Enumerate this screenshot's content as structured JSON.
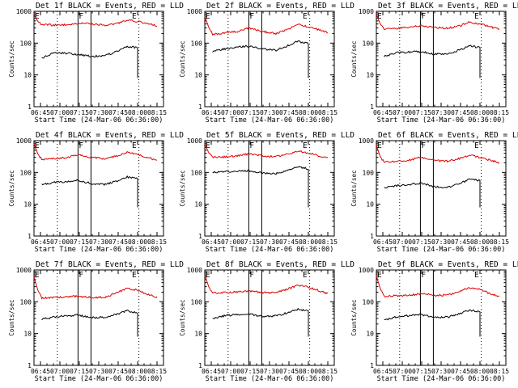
{
  "chart_data": [
    {
      "type": "line",
      "title": "Det 1f BLACK = Events, RED = LLD",
      "xlabel": "Start Time (24-Mar-06 06:36:00)",
      "ylabel": "Counts/sec",
      "yscale": "log",
      "ylim": [
        1,
        1000
      ],
      "yticks": [
        "1",
        "10",
        "100",
        "1000"
      ],
      "xticks": [
        "06:45",
        "07:00",
        "07:15",
        "07:30",
        "07:45",
        "08:00",
        "08:15"
      ],
      "xlim": [
        "06:40",
        "08:20"
      ],
      "vlines_solid": [
        "07:14",
        "07:24"
      ],
      "vlines_dotted": [
        "06:58",
        "08:01"
      ],
      "markers": [
        {
          "label": "E",
          "x": "06:40"
        },
        {
          "label": "F",
          "x": "07:14"
        },
        {
          "label": "E",
          "x": "07:55"
        }
      ],
      "x": [
        "06:40",
        "06:43",
        "06:46",
        "06:55",
        "07:05",
        "07:14",
        "07:25",
        "07:35",
        "07:45",
        "07:52",
        "08:00",
        "08:10",
        "08:15"
      ],
      "series": [
        {
          "color": "#e00000",
          "values": [
            800,
            480,
            380,
            370,
            380,
            420,
            400,
            370,
            420,
            530,
            480,
            390,
            350
          ]
        },
        {
          "color": "#000000",
          "values": [
            null,
            null,
            33,
            50,
            48,
            44,
            38,
            40,
            58,
            78,
            72,
            null,
            null
          ]
        }
      ]
    },
    {
      "type": "line",
      "title": "Det 2f BLACK = Events, RED = LLD",
      "xlabel": "Start Time (24-Mar-06 06:36:00)",
      "ylabel": "Counts/sec",
      "yscale": "log",
      "ylim": [
        1,
        1000
      ],
      "yticks": [
        "1",
        "10",
        "100",
        "1000"
      ],
      "xticks": [
        "06:45",
        "07:00",
        "07:15",
        "07:30",
        "07:45",
        "08:00",
        "08:15"
      ],
      "xlim": [
        "06:40",
        "08:20"
      ],
      "vlines_solid": [
        "07:14",
        "07:24"
      ],
      "vlines_dotted": [
        "06:58",
        "08:01"
      ],
      "markers": [
        {
          "label": "E",
          "x": "06:40"
        },
        {
          "label": "F",
          "x": "07:14"
        },
        {
          "label": "E",
          "x": "07:55"
        }
      ],
      "x": [
        "06:40",
        "06:43",
        "06:46",
        "06:55",
        "07:05",
        "07:14",
        "07:25",
        "07:35",
        "07:45",
        "07:52",
        "08:00",
        "08:10",
        "08:15"
      ],
      "series": [
        {
          "color": "#e00000",
          "values": [
            700,
            320,
            190,
            210,
            230,
            300,
            230,
            200,
            280,
            400,
            320,
            250,
            220
          ]
        },
        {
          "color": "#000000",
          "values": [
            null,
            null,
            55,
            65,
            75,
            80,
            65,
            60,
            85,
            115,
            95,
            null,
            null
          ]
        }
      ]
    },
    {
      "type": "line",
      "title": "Det 3f BLACK = Events, RED = LLD",
      "xlabel": "Start Time (24-Mar-06 06:36:00)",
      "ylabel": "Counts/sec",
      "yscale": "log",
      "ylim": [
        1,
        1000
      ],
      "yticks": [
        "1",
        "10",
        "100",
        "1000"
      ],
      "xticks": [
        "06:45",
        "07:00",
        "07:15",
        "07:30",
        "07:45",
        "08:00",
        "08:15"
      ],
      "xlim": [
        "06:40",
        "08:20"
      ],
      "vlines_solid": [
        "07:14",
        "07:24"
      ],
      "vlines_dotted": [
        "06:58",
        "08:01"
      ],
      "markers": [
        {
          "label": "E",
          "x": "06:40"
        },
        {
          "label": "F",
          "x": "07:14"
        },
        {
          "label": "E",
          "x": "07:55"
        }
      ],
      "x": [
        "06:40",
        "06:43",
        "06:46",
        "06:55",
        "07:05",
        "07:14",
        "07:25",
        "07:35",
        "07:45",
        "07:52",
        "08:00",
        "08:10",
        "08:15"
      ],
      "series": [
        {
          "color": "#e00000",
          "values": [
            800,
            400,
            280,
            290,
            310,
            360,
            310,
            290,
            360,
            460,
            400,
            310,
            280
          ]
        },
        {
          "color": "#000000",
          "values": [
            null,
            null,
            38,
            50,
            52,
            54,
            45,
            46,
            62,
            82,
            72,
            null,
            null
          ]
        }
      ]
    },
    {
      "type": "line",
      "title": "Det 4f BLACK = Events, RED = LLD",
      "xlabel": "Start Time (24-Mar-06 06:36:00)",
      "ylabel": "Counts/sec",
      "yscale": "log",
      "ylim": [
        1,
        1000
      ],
      "yticks": [
        "1",
        "10",
        "100",
        "1000"
      ],
      "xticks": [
        "06:45",
        "07:00",
        "07:15",
        "07:30",
        "07:45",
        "08:00",
        "08:15"
      ],
      "xlim": [
        "06:40",
        "08:20"
      ],
      "vlines_solid": [
        "07:14",
        "07:24"
      ],
      "vlines_dotted": [
        "06:58",
        "08:01"
      ],
      "markers": [
        {
          "label": "E",
          "x": "06:40"
        },
        {
          "label": "F",
          "x": "07:14"
        },
        {
          "label": "E",
          "x": "07:55"
        }
      ],
      "x": [
        "06:40",
        "06:43",
        "06:46",
        "06:55",
        "07:05",
        "07:14",
        "07:25",
        "07:35",
        "07:45",
        "07:52",
        "08:00",
        "08:10",
        "08:15"
      ],
      "series": [
        {
          "color": "#e00000",
          "values": [
            800,
            380,
            260,
            270,
            290,
            360,
            290,
            270,
            340,
            420,
            360,
            280,
            240
          ]
        },
        {
          "color": "#000000",
          "values": [
            null,
            null,
            42,
            48,
            52,
            56,
            44,
            42,
            55,
            72,
            65,
            null,
            null
          ]
        }
      ]
    },
    {
      "type": "line",
      "title": "Det 5f BLACK = Events, RED = LLD",
      "xlabel": "Start Time (24-Mar-06 06:36:00)",
      "ylabel": "Counts/sec",
      "yscale": "log",
      "ylim": [
        1,
        1000
      ],
      "yticks": [
        "1",
        "10",
        "100",
        "1000"
      ],
      "xticks": [
        "06:45",
        "07:00",
        "07:15",
        "07:30",
        "07:45",
        "08:00",
        "08:15"
      ],
      "xlim": [
        "06:40",
        "08:20"
      ],
      "vlines_solid": [
        "07:14",
        "07:24"
      ],
      "vlines_dotted": [
        "06:58",
        "08:01"
      ],
      "markers": [
        {
          "label": "E",
          "x": "06:40"
        },
        {
          "label": "F",
          "x": "07:14"
        },
        {
          "label": "E",
          "x": "07:55"
        }
      ],
      "x": [
        "06:40",
        "06:43",
        "06:46",
        "06:55",
        "07:05",
        "07:14",
        "07:25",
        "07:35",
        "07:45",
        "07:52",
        "08:00",
        "08:10",
        "08:15"
      ],
      "series": [
        {
          "color": "#e00000",
          "values": [
            800,
            420,
            300,
            310,
            330,
            380,
            330,
            310,
            380,
            470,
            410,
            320,
            290
          ]
        },
        {
          "color": "#000000",
          "values": [
            null,
            null,
            100,
            105,
            110,
            112,
            95,
            92,
            115,
            150,
            130,
            null,
            null
          ]
        }
      ]
    },
    {
      "type": "line",
      "title": "Det 6f BLACK = Events, RED = LLD",
      "xlabel": "Start Time (24-Mar-06 06:36:00)",
      "ylabel": "Counts/sec",
      "yscale": "log",
      "ylim": [
        1,
        1000
      ],
      "yticks": [
        "1",
        "10",
        "100",
        "1000"
      ],
      "xticks": [
        "06:45",
        "07:00",
        "07:15",
        "07:30",
        "07:45",
        "08:00",
        "08:15"
      ],
      "xlim": [
        "06:40",
        "08:20"
      ],
      "vlines_solid": [
        "07:14",
        "07:24"
      ],
      "vlines_dotted": [
        "06:58",
        "08:01"
      ],
      "markers": [
        {
          "label": "E",
          "x": "06:40"
        },
        {
          "label": "F",
          "x": "07:14"
        },
        {
          "label": "E",
          "x": "07:55"
        }
      ],
      "x": [
        "06:40",
        "06:43",
        "06:46",
        "06:55",
        "07:05",
        "07:14",
        "07:25",
        "07:35",
        "07:45",
        "07:52",
        "08:00",
        "08:10",
        "08:15"
      ],
      "series": [
        {
          "color": "#e00000",
          "values": [
            700,
            320,
            210,
            225,
            240,
            300,
            240,
            225,
            280,
            350,
            300,
            230,
            200
          ]
        },
        {
          "color": "#000000",
          "values": [
            null,
            null,
            32,
            38,
            42,
            46,
            36,
            34,
            45,
            62,
            55,
            null,
            null
          ]
        }
      ]
    },
    {
      "type": "line",
      "title": "Det 7f BLACK = Events, RED = LLD",
      "xlabel": "Start Time (24-Mar-06 06:36:00)",
      "ylabel": "Counts/sec",
      "yscale": "log",
      "ylim": [
        1,
        1000
      ],
      "yticks": [
        "1",
        "10",
        "100",
        "1000"
      ],
      "xticks": [
        "06:45",
        "07:00",
        "07:15",
        "07:30",
        "07:45",
        "08:00",
        "08:15"
      ],
      "xlim": [
        "06:40",
        "08:20"
      ],
      "vlines_solid": [
        "07:14",
        "07:24"
      ],
      "vlines_dotted": [
        "06:58",
        "08:01"
      ],
      "markers": [
        {
          "label": "E",
          "x": "06:40"
        },
        {
          "label": "F",
          "x": "07:14"
        },
        {
          "label": "E",
          "x": "07:55"
        }
      ],
      "x": [
        "06:40",
        "06:43",
        "06:46",
        "06:55",
        "07:05",
        "07:14",
        "07:25",
        "07:35",
        "07:45",
        "07:52",
        "08:00",
        "08:10",
        "08:15"
      ],
      "series": [
        {
          "color": "#e00000",
          "values": [
            600,
            230,
            130,
            135,
            140,
            150,
            135,
            140,
            200,
            270,
            230,
            160,
            140
          ]
        },
        {
          "color": "#000000",
          "values": [
            null,
            null,
            28,
            33,
            36,
            38,
            32,
            33,
            42,
            52,
            46,
            null,
            null
          ]
        }
      ]
    },
    {
      "type": "line",
      "title": "Det 8f BLACK = Events, RED = LLD",
      "xlabel": "Start Time (24-Mar-06 06:36:00)",
      "ylabel": "Counts/sec",
      "yscale": "log",
      "ylim": [
        1,
        1000
      ],
      "yticks": [
        "1",
        "10",
        "100",
        "1000"
      ],
      "xticks": [
        "06:45",
        "07:00",
        "07:15",
        "07:30",
        "07:45",
        "08:00",
        "08:15"
      ],
      "xlim": [
        "06:40",
        "08:20"
      ],
      "vlines_solid": [
        "07:14",
        "07:24"
      ],
      "vlines_dotted": [
        "06:58",
        "08:01"
      ],
      "markers": [
        {
          "label": "E",
          "x": "06:40"
        },
        {
          "label": "F",
          "x": "07:14"
        },
        {
          "label": "E",
          "x": "07:55"
        }
      ],
      "x": [
        "06:40",
        "06:43",
        "06:46",
        "06:55",
        "07:05",
        "07:14",
        "07:25",
        "07:35",
        "07:45",
        "07:52",
        "08:00",
        "08:10",
        "08:15"
      ],
      "series": [
        {
          "color": "#e00000",
          "values": [
            700,
            300,
            190,
            195,
            200,
            220,
            195,
            195,
            260,
            330,
            290,
            210,
            180
          ]
        },
        {
          "color": "#000000",
          "values": [
            null,
            null,
            30,
            36,
            40,
            42,
            34,
            36,
            46,
            58,
            52,
            null,
            null
          ]
        }
      ]
    },
    {
      "type": "line",
      "title": "Det 9f BLACK = Events, RED = LLD",
      "xlabel": "Start Time (24-Mar-06 06:36:00)",
      "ylabel": "Counts/sec",
      "yscale": "log",
      "ylim": [
        1,
        1000
      ],
      "yticks": [
        "1",
        "10",
        "100",
        "1000"
      ],
      "xticks": [
        "06:45",
        "07:00",
        "07:15",
        "07:30",
        "07:45",
        "08:00",
        "08:15"
      ],
      "xlim": [
        "06:40",
        "08:20"
      ],
      "vlines_solid": [
        "07:14",
        "07:24"
      ],
      "vlines_dotted": [
        "06:58",
        "08:01"
      ],
      "markers": [
        {
          "label": "E",
          "x": "06:40"
        },
        {
          "label": "F",
          "x": "07:14"
        },
        {
          "label": "E",
          "x": "07:55"
        }
      ],
      "x": [
        "06:40",
        "06:43",
        "06:46",
        "06:55",
        "07:05",
        "07:14",
        "07:25",
        "07:35",
        "07:45",
        "07:52",
        "08:00",
        "08:10",
        "08:15"
      ],
      "series": [
        {
          "color": "#e00000",
          "values": [
            650,
            260,
            150,
            155,
            160,
            180,
            160,
            160,
            220,
            280,
            240,
            170,
            150
          ]
        },
        {
          "color": "#000000",
          "values": [
            null,
            null,
            27,
            33,
            37,
            40,
            32,
            33,
            42,
            55,
            48,
            null,
            null
          ]
        }
      ]
    }
  ]
}
